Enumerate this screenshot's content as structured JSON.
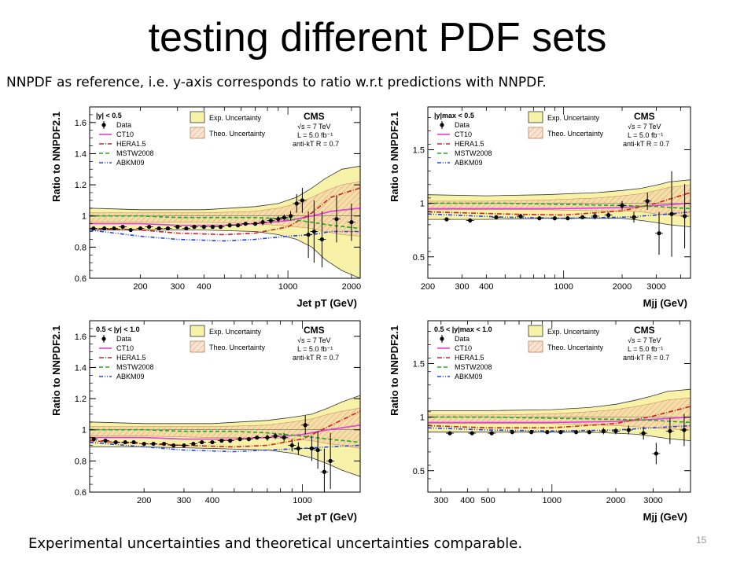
{
  "slide": {
    "title": "testing different PDF sets",
    "subtitle": "NNPDF as reference, i.e. y-axis corresponds to ratio w.r.t predictions with NNPDF.",
    "footer": "Experimental uncertainties and theoretical uncertainties comparable.",
    "page_number": "15"
  },
  "colors": {
    "data": "#000000",
    "ct10": "#e040e0",
    "hera": "#cc2222",
    "mstw": "#22aa22",
    "abkm": "#2244ee",
    "exp_fill": "#f7f2a8",
    "theo_fill": "#f3c9a8"
  },
  "chart_data": [
    {
      "type": "line",
      "rapidity_label": "|y| < 0.5",
      "experiment": "CMS",
      "energy": "√s = 7 TeV",
      "lumi": "L = 5.0 fb⁻¹",
      "algo": "anti-kT R = 0.7",
      "ylabel": "Ratio to NNPDF2.1",
      "xlabel": "Jet pT (GeV)",
      "xscale": "log",
      "xlim": [
        115,
        2200
      ],
      "ylim": [
        0.6,
        1.7
      ],
      "xticks": [
        200,
        300,
        400,
        1000,
        2000
      ],
      "xtick_labels": [
        "200",
        "300",
        "400",
        "1000",
        "2000"
      ],
      "yticks": [
        0.6,
        0.8,
        1.0,
        1.2,
        1.4,
        1.6
      ],
      "ytick_labels": [
        "0.6",
        "0.8",
        "1",
        "1.2",
        "1.4",
        "1.6"
      ],
      "legend_items": [
        "Data",
        "CT10",
        "HERA1.5",
        "MSTW2008",
        "ABKM09"
      ],
      "band_legend": [
        "Exp. Uncertainty",
        "Theo. Uncertainty"
      ],
      "data": {
        "x": [
          120,
          135,
          150,
          165,
          180,
          200,
          220,
          245,
          270,
          300,
          330,
          360,
          400,
          440,
          480,
          530,
          580,
          630,
          700,
          760,
          830,
          900,
          960,
          1030,
          1100,
          1170,
          1250,
          1330,
          1450,
          1700,
          2000
        ],
        "y": [
          0.92,
          0.92,
          0.92,
          0.93,
          0.91,
          0.92,
          0.93,
          0.92,
          0.92,
          0.93,
          0.92,
          0.93,
          0.93,
          0.93,
          0.93,
          0.94,
          0.94,
          0.95,
          0.95,
          0.96,
          0.97,
          0.98,
          0.99,
          1.0,
          1.08,
          1.1,
          0.88,
          0.9,
          0.85,
          0.98,
          0.96
        ],
        "err": [
          0.01,
          0.01,
          0.01,
          0.01,
          0.01,
          0.01,
          0.01,
          0.01,
          0.01,
          0.01,
          0.01,
          0.01,
          0.01,
          0.01,
          0.01,
          0.01,
          0.01,
          0.01,
          0.01,
          0.02,
          0.02,
          0.02,
          0.02,
          0.03,
          0.06,
          0.08,
          0.15,
          0.2,
          0.18,
          0.15,
          0.12
        ]
      },
      "exp_band": {
        "x": [
          115,
          200,
          400,
          700,
          900,
          1100,
          1300,
          1500,
          1800,
          2200
        ],
        "lo": [
          0.91,
          0.91,
          0.91,
          0.9,
          0.88,
          0.85,
          0.8,
          0.72,
          0.65,
          0.6
        ],
        "hi": [
          1.05,
          1.04,
          1.04,
          1.06,
          1.08,
          1.12,
          1.18,
          1.24,
          1.3,
          1.32
        ]
      },
      "theo_band": {
        "x": [
          115,
          200,
          400,
          700,
          900,
          1100,
          1300,
          1500,
          1800,
          2200
        ],
        "lo": [
          0.96,
          0.96,
          0.96,
          0.95,
          0.94,
          0.93,
          0.92,
          0.9,
          0.88,
          0.87
        ],
        "hi": [
          1.02,
          1.02,
          1.02,
          1.03,
          1.05,
          1.08,
          1.12,
          1.16,
          1.2,
          1.22
        ]
      },
      "series": [
        {
          "name": "CT10",
          "x": [
            115,
            200,
            300,
            500,
            700,
            1000,
            1300,
            1600,
            2200
          ],
          "y": [
            0.95,
            0.95,
            0.94,
            0.94,
            0.95,
            0.97,
            1.0,
            1.03,
            1.05
          ]
        },
        {
          "name": "HERA1.5",
          "x": [
            115,
            200,
            300,
            500,
            700,
            1000,
            1300,
            1600,
            2200
          ],
          "y": [
            0.92,
            0.91,
            0.89,
            0.88,
            0.89,
            0.93,
            1.02,
            1.12,
            1.18
          ]
        },
        {
          "name": "MSTW2008",
          "x": [
            115,
            200,
            300,
            500,
            700,
            1000,
            1300,
            1600,
            2200
          ],
          "y": [
            1.0,
            1.0,
            0.99,
            0.99,
            0.99,
            0.98,
            0.96,
            0.94,
            0.92
          ]
        },
        {
          "name": "ABKM09",
          "x": [
            115,
            200,
            300,
            500,
            700,
            1000,
            1300,
            1600,
            2200
          ],
          "y": [
            0.91,
            0.87,
            0.85,
            0.84,
            0.85,
            0.87,
            0.88,
            0.9,
            0.9
          ]
        }
      ]
    },
    {
      "type": "line",
      "rapidity_label": "|y|max < 0.5",
      "experiment": "CMS",
      "energy": "√s = 7 TeV",
      "lumi": "L = 5.0 fb⁻¹",
      "algo": "anti-kT R = 0.7",
      "ylabel": "Ratio to NNPDF2.1",
      "xlabel": "Mjj (GeV)",
      "xscale": "log",
      "xlim": [
        200,
        4500
      ],
      "ylim": [
        0.3,
        1.9
      ],
      "xticks": [
        200,
        300,
        400,
        1000,
        2000,
        3000
      ],
      "xtick_labels": [
        "200",
        "300",
        "400",
        "1000",
        "2000",
        "3000"
      ],
      "yticks": [
        0.5,
        1.0,
        1.5
      ],
      "ytick_labels": [
        "0.5",
        "1",
        "1.5"
      ],
      "legend_items": [
        "Data",
        "CT10",
        "HERA1.5",
        "MSTW2008",
        "ABKM09"
      ],
      "band_legend": [
        "Exp. Uncertainty",
        "Theo. Uncertainty"
      ],
      "data": {
        "x": [
          250,
          330,
          450,
          600,
          750,
          900,
          1050,
          1250,
          1450,
          1700,
          2000,
          2300,
          2700,
          3100,
          3600,
          4200
        ],
        "y": [
          0.85,
          0.84,
          0.87,
          0.88,
          0.86,
          0.86,
          0.86,
          0.87,
          0.88,
          0.89,
          0.98,
          0.87,
          1.02,
          0.72,
          0.9,
          0.88
        ],
        "err": [
          0.02,
          0.02,
          0.02,
          0.02,
          0.02,
          0.02,
          0.02,
          0.02,
          0.03,
          0.03,
          0.04,
          0.05,
          0.08,
          0.2,
          0.4,
          0.3
        ]
      },
      "exp_band": {
        "x": [
          200,
          400,
          800,
          1500,
          2000,
          2500,
          3000,
          3500,
          4500
        ],
        "lo": [
          0.85,
          0.85,
          0.86,
          0.86,
          0.86,
          0.84,
          0.82,
          0.8,
          0.78
        ],
        "hi": [
          1.08,
          1.07,
          1.08,
          1.1,
          1.12,
          1.14,
          1.17,
          1.2,
          1.22
        ]
      },
      "theo_band": {
        "x": [
          200,
          400,
          800,
          1500,
          2000,
          2500,
          3000,
          3500,
          4500
        ],
        "lo": [
          0.94,
          0.94,
          0.94,
          0.93,
          0.93,
          0.92,
          0.9,
          0.89,
          0.88
        ],
        "hi": [
          1.02,
          1.02,
          1.03,
          1.05,
          1.07,
          1.09,
          1.12,
          1.15,
          1.17
        ]
      },
      "series": [
        {
          "name": "CT10",
          "x": [
            200,
            500,
            1000,
            2000,
            3000,
            4500
          ],
          "y": [
            0.95,
            0.95,
            0.95,
            0.96,
            0.98,
            1.0
          ]
        },
        {
          "name": "HERA1.5",
          "x": [
            200,
            500,
            1000,
            2000,
            3000,
            4500
          ],
          "y": [
            0.92,
            0.9,
            0.89,
            0.93,
            1.0,
            1.1
          ]
        },
        {
          "name": "MSTW2008",
          "x": [
            200,
            500,
            1000,
            2000,
            3000,
            4500
          ],
          "y": [
            1.0,
            1.0,
            0.99,
            0.98,
            0.97,
            0.95
          ]
        },
        {
          "name": "ABKM09",
          "x": [
            200,
            500,
            1000,
            2000,
            3000,
            4500
          ],
          "y": [
            0.9,
            0.87,
            0.86,
            0.87,
            0.89,
            0.92
          ]
        }
      ]
    },
    {
      "type": "line",
      "rapidity_label": "0.5 < |y| < 1.0",
      "experiment": "CMS",
      "energy": "√s = 7 TeV",
      "lumi": "L = 5.0 fb⁻¹",
      "algo": "anti-kT R = 0.7",
      "ylabel": "Ratio to NNPDF2.1",
      "xlabel": "Jet pT (GeV)",
      "xscale": "log",
      "xlim": [
        115,
        1800
      ],
      "ylim": [
        0.6,
        1.7
      ],
      "xticks": [
        200,
        300,
        400,
        1000
      ],
      "xtick_labels": [
        "200",
        "300",
        "400",
        "1000"
      ],
      "yticks": [
        0.6,
        0.8,
        1.0,
        1.2,
        1.4,
        1.6
      ],
      "ytick_labels": [
        "0.6",
        "0.8",
        "1",
        "1.2",
        "1.4",
        "1.6"
      ],
      "legend_items": [
        "Data",
        "CT10",
        "HERA1.5",
        "MSTW2008",
        "ABKM09"
      ],
      "band_legend": [
        "Exp. Uncertainty",
        "Theo. Uncertainty"
      ],
      "data": {
        "x": [
          120,
          135,
          150,
          165,
          180,
          200,
          220,
          245,
          270,
          300,
          330,
          360,
          400,
          440,
          480,
          530,
          580,
          630,
          700,
          760,
          830,
          900,
          960,
          1030,
          1100,
          1170,
          1250,
          1330
        ],
        "y": [
          0.94,
          0.93,
          0.92,
          0.92,
          0.92,
          0.91,
          0.91,
          0.91,
          0.9,
          0.9,
          0.91,
          0.92,
          0.92,
          0.93,
          0.93,
          0.94,
          0.94,
          0.95,
          0.95,
          0.96,
          0.95,
          0.9,
          0.88,
          1.03,
          0.88,
          0.87,
          0.73,
          0.8
        ],
        "err": [
          0.01,
          0.01,
          0.01,
          0.01,
          0.01,
          0.01,
          0.01,
          0.01,
          0.01,
          0.01,
          0.01,
          0.01,
          0.01,
          0.01,
          0.01,
          0.01,
          0.01,
          0.01,
          0.02,
          0.02,
          0.03,
          0.04,
          0.04,
          0.06,
          0.08,
          0.12,
          0.15,
          0.18
        ]
      },
      "exp_band": {
        "x": [
          115,
          200,
          400,
          700,
          900,
          1100,
          1300,
          1500,
          1800
        ],
        "lo": [
          0.89,
          0.89,
          0.88,
          0.87,
          0.85,
          0.82,
          0.78,
          0.74,
          0.7
        ],
        "hi": [
          1.05,
          1.04,
          1.04,
          1.06,
          1.08,
          1.1,
          1.14,
          1.18,
          1.22
        ]
      },
      "theo_band": {
        "x": [
          115,
          200,
          400,
          700,
          900,
          1100,
          1300,
          1500,
          1800
        ],
        "lo": [
          0.96,
          0.96,
          0.95,
          0.95,
          0.94,
          0.93,
          0.91,
          0.9,
          0.88
        ],
        "hi": [
          1.02,
          1.02,
          1.02,
          1.03,
          1.05,
          1.07,
          1.1,
          1.12,
          1.14
        ]
      },
      "series": [
        {
          "name": "CT10",
          "x": [
            115,
            200,
            300,
            500,
            700,
            1000,
            1300,
            1800
          ],
          "y": [
            0.95,
            0.95,
            0.94,
            0.94,
            0.95,
            0.97,
            1.0,
            1.03
          ]
        },
        {
          "name": "HERA1.5",
          "x": [
            115,
            200,
            300,
            500,
            700,
            1000,
            1300,
            1800
          ],
          "y": [
            0.93,
            0.91,
            0.9,
            0.89,
            0.9,
            0.94,
            1.02,
            1.12
          ]
        },
        {
          "name": "MSTW2008",
          "x": [
            115,
            200,
            300,
            500,
            700,
            1000,
            1300,
            1800
          ],
          "y": [
            1.0,
            1.0,
            0.99,
            0.99,
            0.98,
            0.96,
            0.94,
            0.92
          ]
        },
        {
          "name": "ABKM09",
          "x": [
            115,
            200,
            300,
            500,
            700,
            1000,
            1300,
            1800
          ],
          "y": [
            0.92,
            0.89,
            0.87,
            0.86,
            0.87,
            0.88,
            0.89,
            0.9
          ]
        }
      ]
    },
    {
      "type": "line",
      "rapidity_label": "0.5 < |y|max < 1.0",
      "experiment": "CMS",
      "energy": "√s = 7 TeV",
      "lumi": "L = 5.0 fb⁻¹",
      "algo": "anti-kT R = 0.7",
      "ylabel": "Ratio to NNPDF2.1",
      "xlabel": "Mjj (GeV)",
      "xscale": "log",
      "xlim": [
        260,
        4500
      ],
      "ylim": [
        0.3,
        1.9
      ],
      "xticks": [
        300,
        400,
        500,
        1000,
        2000,
        3000
      ],
      "xtick_labels": [
        "300",
        "400",
        "500",
        "1000",
        "2000",
        "3000"
      ],
      "yticks": [
        0.5,
        1.0,
        1.5
      ],
      "ytick_labels": [
        "0.5",
        "1",
        "1.5"
      ],
      "legend_items": [
        "Data",
        "CT10",
        "HERA1.5",
        "MSTW2008",
        "ABKM09"
      ],
      "band_legend": [
        "Exp. Uncertainty",
        "Theo. Uncertainty"
      ],
      "data": {
        "x": [
          330,
          420,
          520,
          650,
          800,
          950,
          1100,
          1300,
          1500,
          1750,
          2000,
          2300,
          2700,
          3100,
          3600,
          4200
        ],
        "y": [
          0.85,
          0.85,
          0.85,
          0.86,
          0.86,
          0.86,
          0.86,
          0.86,
          0.86,
          0.87,
          0.87,
          0.88,
          0.85,
          0.66,
          0.87,
          0.88
        ],
        "err": [
          0.02,
          0.02,
          0.02,
          0.02,
          0.02,
          0.02,
          0.02,
          0.02,
          0.02,
          0.03,
          0.03,
          0.04,
          0.06,
          0.1,
          0.12,
          0.15
        ]
      },
      "exp_band": {
        "x": [
          260,
          500,
          1000,
          1500,
          2000,
          2500,
          3000,
          3500,
          4500
        ],
        "lo": [
          0.86,
          0.86,
          0.86,
          0.86,
          0.85,
          0.84,
          0.82,
          0.8,
          0.78
        ],
        "hi": [
          1.06,
          1.06,
          1.07,
          1.09,
          1.12,
          1.16,
          1.2,
          1.24,
          1.26
        ]
      },
      "theo_band": {
        "x": [
          260,
          500,
          1000,
          1500,
          2000,
          2500,
          3000,
          3500,
          4500
        ],
        "lo": [
          0.94,
          0.94,
          0.94,
          0.93,
          0.92,
          0.91,
          0.9,
          0.89,
          0.88
        ],
        "hi": [
          1.02,
          1.02,
          1.03,
          1.05,
          1.07,
          1.1,
          1.13,
          1.16,
          1.18
        ]
      },
      "series": [
        {
          "name": "CT10",
          "x": [
            260,
            500,
            1000,
            2000,
            3000,
            4500
          ],
          "y": [
            0.95,
            0.95,
            0.95,
            0.96,
            0.98,
            1.0
          ]
        },
        {
          "name": "HERA1.5",
          "x": [
            260,
            500,
            1000,
            2000,
            3000,
            4500
          ],
          "y": [
            0.92,
            0.9,
            0.9,
            0.94,
            1.01,
            1.1
          ]
        },
        {
          "name": "MSTW2008",
          "x": [
            260,
            500,
            1000,
            2000,
            3000,
            4500
          ],
          "y": [
            1.0,
            1.0,
            0.99,
            0.98,
            0.97,
            0.95
          ]
        },
        {
          "name": "ABKM09",
          "x": [
            260,
            500,
            1000,
            2000,
            3000,
            4500
          ],
          "y": [
            0.9,
            0.88,
            0.87,
            0.88,
            0.9,
            0.92
          ]
        }
      ]
    }
  ]
}
